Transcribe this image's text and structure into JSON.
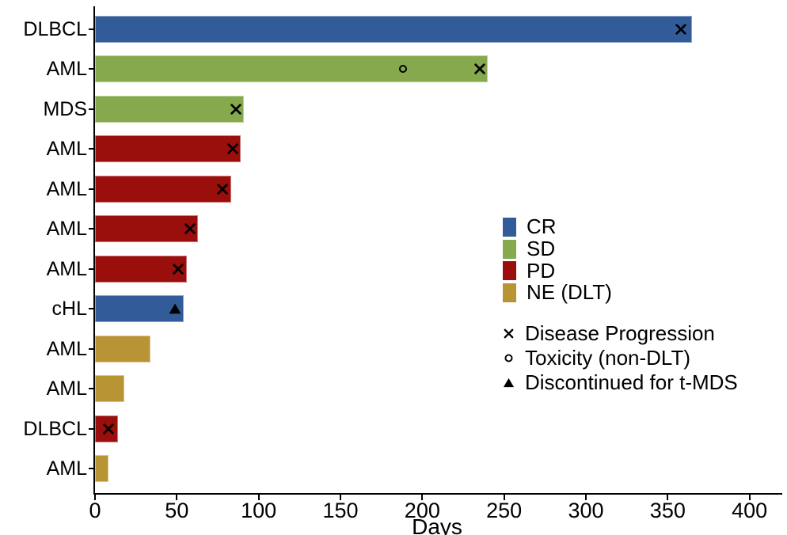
{
  "chart_data": {
    "type": "bar",
    "orientation": "horizontal",
    "title": "",
    "xlabel": "Days",
    "ylabel": "",
    "x_ticks": [
      0,
      50,
      100,
      150,
      200,
      250,
      300,
      350,
      400
    ],
    "xlim": [
      0,
      420
    ],
    "grid": "off",
    "legend_position": "right-middle",
    "categories": [
      "DLBCL",
      "AML",
      "MDS",
      "AML",
      "AML",
      "AML",
      "AML",
      "cHL",
      "AML",
      "AML",
      "DLBCL",
      "AML"
    ],
    "bars": [
      {
        "label": "DLBCL",
        "response": "CR",
        "days": 365,
        "markers": [
          {
            "icon": "x-icon",
            "day": 358
          }
        ]
      },
      {
        "label": "AML",
        "response": "SD",
        "days": 240,
        "markers": [
          {
            "icon": "circle-icon",
            "day": 188
          },
          {
            "icon": "x-icon",
            "day": 235
          }
        ]
      },
      {
        "label": "MDS",
        "response": "SD",
        "days": 91,
        "markers": [
          {
            "icon": "x-icon",
            "day": 86
          }
        ]
      },
      {
        "label": "AML",
        "response": "PD",
        "days": 89,
        "markers": [
          {
            "icon": "x-icon",
            "day": 84
          }
        ]
      },
      {
        "label": "AML",
        "response": "PD",
        "days": 83,
        "markers": [
          {
            "icon": "x-icon",
            "day": 78
          }
        ]
      },
      {
        "label": "AML",
        "response": "PD",
        "days": 63,
        "markers": [
          {
            "icon": "x-icon",
            "day": 58
          }
        ]
      },
      {
        "label": "AML",
        "response": "PD",
        "days": 56,
        "markers": [
          {
            "icon": "x-icon",
            "day": 51
          }
        ]
      },
      {
        "label": "cHL",
        "response": "CR",
        "days": 54,
        "markers": [
          {
            "icon": "triangle-icon",
            "day": 49
          }
        ]
      },
      {
        "label": "AML",
        "response": "NE (DLT)",
        "days": 34,
        "markers": []
      },
      {
        "label": "AML",
        "response": "NE (DLT)",
        "days": 18,
        "markers": []
      },
      {
        "label": "DLBCL",
        "response": "PD",
        "days": 14,
        "markers": [
          {
            "icon": "x-icon",
            "day": 8
          }
        ]
      },
      {
        "label": "AML",
        "response": "NE (DLT)",
        "days": 8,
        "markers": []
      }
    ],
    "response_colors": {
      "CR": "#315C99",
      "SD": "#85A94C",
      "PD": "#9A0E0C",
      "NE (DLT)": "#B99434"
    },
    "legend": {
      "fill_items": [
        {
          "label": "CR"
        },
        {
          "label": "SD"
        },
        {
          "label": "PD"
        },
        {
          "label": "NE (DLT)"
        }
      ],
      "marker_items": [
        {
          "icon": "x-icon",
          "label": "Disease Progression"
        },
        {
          "icon": "circle-icon",
          "label": "Toxicity (non-DLT)"
        },
        {
          "icon": "triangle-icon",
          "label": "Discontinued for t-MDS"
        }
      ]
    },
    "axis_color": "#000000",
    "text_color": "#000000"
  }
}
